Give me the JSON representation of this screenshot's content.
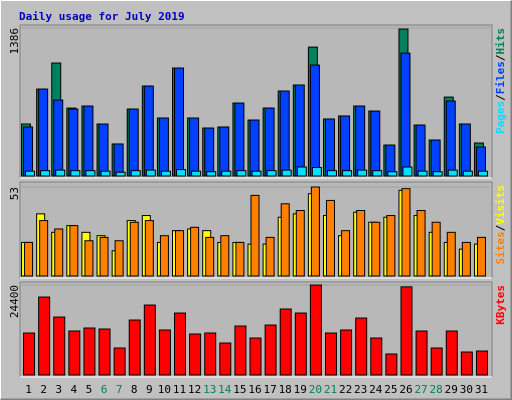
{
  "legend_separator": "/",
  "chart_data": [
    {
      "type": "bar",
      "title": "Daily usage for July 2019",
      "ylim": [
        0,
        1386
      ],
      "yticks": [
        1386
      ],
      "series": [
        {
          "name": "Hits",
          "color": "#00805c",
          "values": [
            487,
            814,
            1058,
            636,
            655,
            487,
            300,
            627,
            842,
            543,
            1011,
            543,
            449,
            459,
            683,
            524,
            636,
            796,
            852,
            1207,
            534,
            562,
            655,
            608,
            290,
            1376,
            477,
            337,
            739,
            487,
            309
          ]
        },
        {
          "name": "Files",
          "color": "#0040ff",
          "values": [
            459,
            814,
            711,
            627,
            655,
            487,
            300,
            627,
            842,
            543,
            1011,
            543,
            449,
            459,
            683,
            524,
            636,
            796,
            852,
            1039,
            534,
            562,
            655,
            608,
            290,
            1151,
            477,
            337,
            702,
            487,
            271
          ]
        },
        {
          "name": "Pages",
          "color": "#00e0ff",
          "values": [
            45,
            50,
            55,
            50,
            50,
            45,
            35,
            50,
            55,
            45,
            60,
            45,
            40,
            45,
            50,
            45,
            50,
            55,
            84,
            80,
            50,
            50,
            55,
            50,
            40,
            84,
            45,
            40,
            55,
            45,
            45
          ]
        }
      ]
    },
    {
      "type": "bar",
      "ylim": [
        0,
        53
      ],
      "yticks": [
        53
      ],
      "series": [
        {
          "name": "Visits",
          "color": "#ffff00",
          "values": [
            20,
            37,
            26,
            30,
            26,
            24,
            15,
            33,
            36,
            20,
            27,
            28,
            27,
            20,
            20,
            19,
            19,
            35,
            37,
            49,
            36,
            24,
            38,
            32,
            35,
            51,
            36,
            26,
            20,
            16,
            19
          ]
        },
        {
          "name": "Sites",
          "color": "#ff8000",
          "values": [
            20,
            33,
            28,
            30,
            21,
            23,
            21,
            32,
            33,
            24,
            27,
            29,
            23,
            24,
            20,
            48,
            23,
            43,
            39,
            53,
            45,
            27,
            39,
            32,
            36,
            52,
            39,
            32,
            26,
            20,
            23
          ]
        }
      ]
    },
    {
      "type": "bar",
      "ylim": [
        0,
        24400
      ],
      "yticks": [
        24400
      ],
      "categories": [
        1,
        2,
        3,
        4,
        5,
        6,
        7,
        8,
        9,
        10,
        11,
        12,
        13,
        14,
        15,
        16,
        17,
        18,
        19,
        20,
        21,
        22,
        23,
        24,
        25,
        26,
        27,
        28,
        29,
        30,
        31
      ],
      "weekend_days": [
        6,
        7,
        13,
        14,
        20,
        21,
        27,
        28
      ],
      "weekend_color": "#00805c",
      "series": [
        {
          "name": "KBytes",
          "color": "#ff0000",
          "values": [
            11382,
            21137,
            15716,
            11924,
            12737,
            12466,
            7317,
            14903,
            18968,
            12195,
            16800,
            11111,
            11382,
            8672,
            13279,
            10027,
            13550,
            17890,
            16800,
            24400,
            11382,
            12195,
            15447,
            10027,
            5691,
            23900,
            11924,
            7317,
            11924,
            6233,
            6504
          ]
        }
      ]
    }
  ]
}
